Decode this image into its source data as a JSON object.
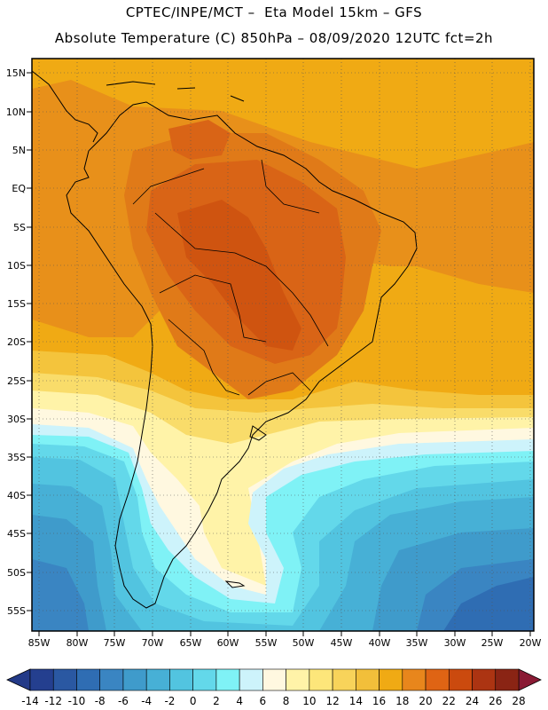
{
  "header": {
    "line1": "CPTEC/INPE/MCT –  Eta Model 15km – GFS",
    "line2": "Absolute Temperature (C) 850hPa – 08/09/2020 12UTC fct=2h"
  },
  "axes": {
    "lat_labels": [
      "15N",
      "10N",
      "5N",
      "EQ",
      "5S",
      "10S",
      "15S",
      "20S",
      "25S",
      "30S",
      "35S",
      "40S",
      "45S",
      "50S",
      "55S"
    ],
    "lon_labels": [
      "85W",
      "80W",
      "75W",
      "70W",
      "65W",
      "60W",
      "55W",
      "50W",
      "45W",
      "40W",
      "35W",
      "30W",
      "25W",
      "20W"
    ]
  },
  "colorbar": {
    "ticks": [
      "-14",
      "-12",
      "-10",
      "-8",
      "-6",
      "-4",
      "-2",
      "0",
      "2",
      "4",
      "6",
      "8",
      "10",
      "12",
      "14",
      "16",
      "18",
      "20",
      "22",
      "24",
      "26",
      "28"
    ],
    "colors": [
      "#243f8f",
      "#2a58a2",
      "#2f6db3",
      "#3a85c2",
      "#3f9bcb",
      "#47b0d6",
      "#52c4e0",
      "#63d8ea",
      "#7ff2f6",
      "#cdf3fb",
      "#fff8e0",
      "#fff3a8",
      "#fde67a",
      "#f8d35a",
      "#f2bf3a",
      "#f0aa14",
      "#e8861c",
      "#df6414",
      "#cb4a0e",
      "#ac3412",
      "#8a2414"
    ],
    "under_color": "#233a88",
    "over_color": "#8a1a34"
  },
  "palette": {
    "t14": "#f0aa14",
    "t16": "#e8901a",
    "t18": "#e07a18",
    "t20": "#d96416",
    "t22": "#cf5410",
    "t12": "#f4c43c",
    "t10": "#f9dc6a",
    "t8": "#fff3a8",
    "t6": "#fff8e0",
    "t4": "#cdf3fb",
    "t2": "#7ff2f6",
    "t0": "#63d8ea",
    "tm2": "#52c4e0",
    "tm4": "#47b0d6",
    "tm6": "#3f9bcb",
    "tm8": "#3a85c2",
    "tm10": "#2f6db3"
  }
}
